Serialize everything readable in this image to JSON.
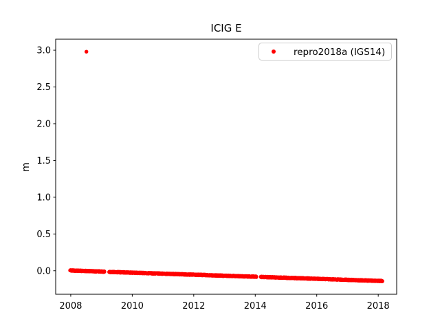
{
  "figure": {
    "background_color": "#ffffff",
    "axes_edge_color": "#000000",
    "text_color": "#000000"
  },
  "chart_data": {
    "type": "scatter",
    "title": "ICIG E",
    "xlabel": "",
    "ylabel": "m",
    "xlim": [
      2007.51,
      2018.6
    ],
    "ylim": [
      -0.32,
      3.15
    ],
    "xticks": [
      2008,
      2010,
      2012,
      2014,
      2016,
      2018
    ],
    "x_tick_labels": [
      "2008",
      "2010",
      "2012",
      "2014",
      "2016",
      "2018"
    ],
    "yticks": [
      0.0,
      0.5,
      1.0,
      1.5,
      2.0,
      2.5,
      3.0
    ],
    "y_tick_labels": [
      "0.0",
      "0.5",
      "1.0",
      "1.5",
      "2.0",
      "2.5",
      "3.0"
    ],
    "grid": false,
    "legend": {
      "label": "repro2018a (IGS14)",
      "location": "upper right",
      "border_color": "#cccccc",
      "background_color": "rgba(255,255,255,0.8)"
    },
    "series": [
      {
        "name": "repro2018a (IGS14)",
        "color": "#ff0000",
        "marker": "dot",
        "marker_radius_px": 2.7,
        "trend_segments": [
          {
            "x_start": 2007.98,
            "x_end": 2009.1,
            "y_start": 0.004,
            "y_end": -0.012
          },
          {
            "x_start": 2009.25,
            "x_end": 2014.04,
            "y_start": -0.016,
            "y_end": -0.082
          },
          {
            "x_start": 2014.18,
            "x_end": 2018.14,
            "y_start": -0.084,
            "y_end": -0.14
          }
        ],
        "gaps_years": [
          [
            2009.1,
            2009.25
          ],
          [
            2014.04,
            2014.18
          ]
        ],
        "jitter_m": 0.006,
        "sample_step_years": 0.005,
        "outliers": [
          [
            2008.51,
            2.98
          ]
        ]
      }
    ]
  }
}
